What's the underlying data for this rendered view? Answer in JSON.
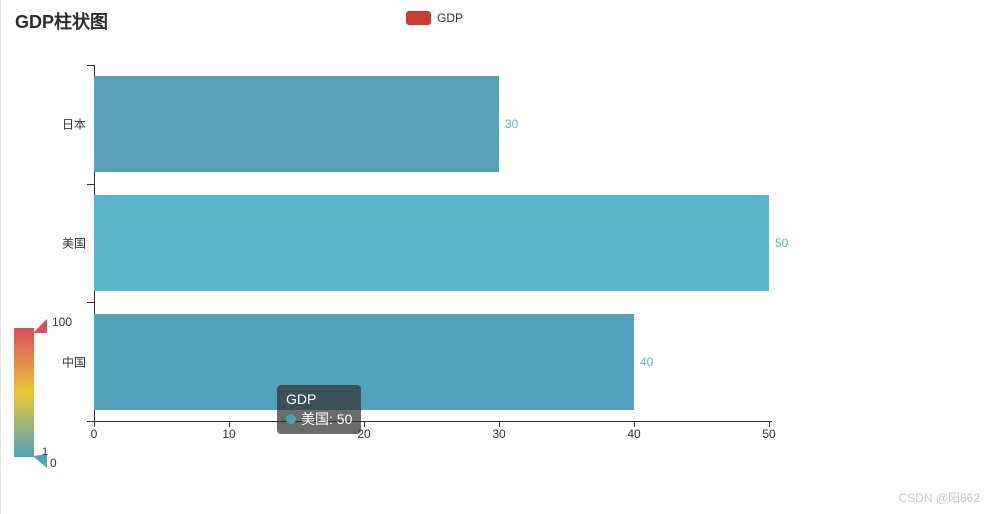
{
  "header": {
    "title": "GDP柱状图"
  },
  "legend": {
    "label": "GDP",
    "marker_color": "#c83c33"
  },
  "chart_data": {
    "type": "bar",
    "orientation": "horizontal",
    "title": "GDP柱状图",
    "categories": [
      "日本",
      "美国",
      "中国"
    ],
    "series": [
      {
        "name": "GDP",
        "values": [
          30,
          50,
          40
        ]
      }
    ],
    "bar_colors": [
      "#57a2b5",
      "#5bb4cb",
      "#50a3ba"
    ],
    "value_labels": [
      "30",
      "50",
      "40"
    ],
    "value_label_color": "#66afcc",
    "x_ticks": [
      "0",
      "10",
      "20",
      "30",
      "40",
      "50"
    ],
    "x_tick_values": [
      0,
      10,
      20,
      30,
      40,
      50
    ],
    "xlim": [
      0,
      50
    ],
    "grid": false,
    "legend_position": "top-center",
    "axis_color": "#333333"
  },
  "visual_map": {
    "max_label": "100",
    "handle_label": "1",
    "min_label": "0",
    "gradient_bottom": "#50a3ba",
    "gradient_middle": "#eac736",
    "gradient_top": "#d94e5d"
  },
  "tooltip": {
    "title": "GDP",
    "line": "美国: 50",
    "marker_color": "#4fa0b5"
  },
  "watermark": "CSDN @阳862"
}
